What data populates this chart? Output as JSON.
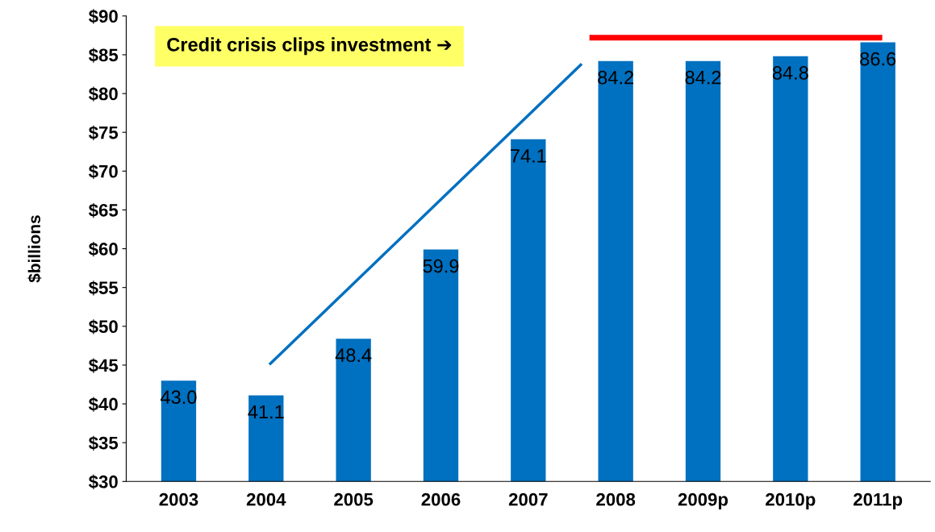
{
  "chart_data": {
    "type": "bar",
    "ylabel": "$billions",
    "categories": [
      "2003",
      "2004",
      "2005",
      "2006",
      "2007",
      "2008",
      "2009p",
      "2010p",
      "2011p"
    ],
    "series": [
      {
        "color": "#0070c0",
        "values": [
          43.0,
          41.1,
          48.4,
          59.9,
          74.1,
          84.2,
          84.2,
          84.8,
          86.6
        ],
        "value_labels": [
          "43.0",
          "41.1",
          "48.4",
          "59.9",
          "74.1",
          "84.2",
          "84.2",
          "84.8",
          "86.6"
        ]
      }
    ],
    "ylim": [
      30,
      90
    ],
    "yticks": [
      {
        "value": 30,
        "label": "$30"
      },
      {
        "value": 35,
        "label": "$35"
      },
      {
        "value": 40,
        "label": "$40"
      },
      {
        "value": 45,
        "label": "$45"
      },
      {
        "value": 50,
        "label": "$50"
      },
      {
        "value": 55,
        "label": "$55"
      },
      {
        "value": 60,
        "label": "$60"
      },
      {
        "value": 65,
        "label": "$65"
      },
      {
        "value": 70,
        "label": "$70"
      },
      {
        "value": 75,
        "label": "$75"
      },
      {
        "value": 80,
        "label": "$80"
      },
      {
        "value": 85,
        "label": "$85"
      },
      {
        "value": 90,
        "label": "$90"
      }
    ],
    "annotations": [
      "Credit crisis clips investment ➔"
    ]
  }
}
